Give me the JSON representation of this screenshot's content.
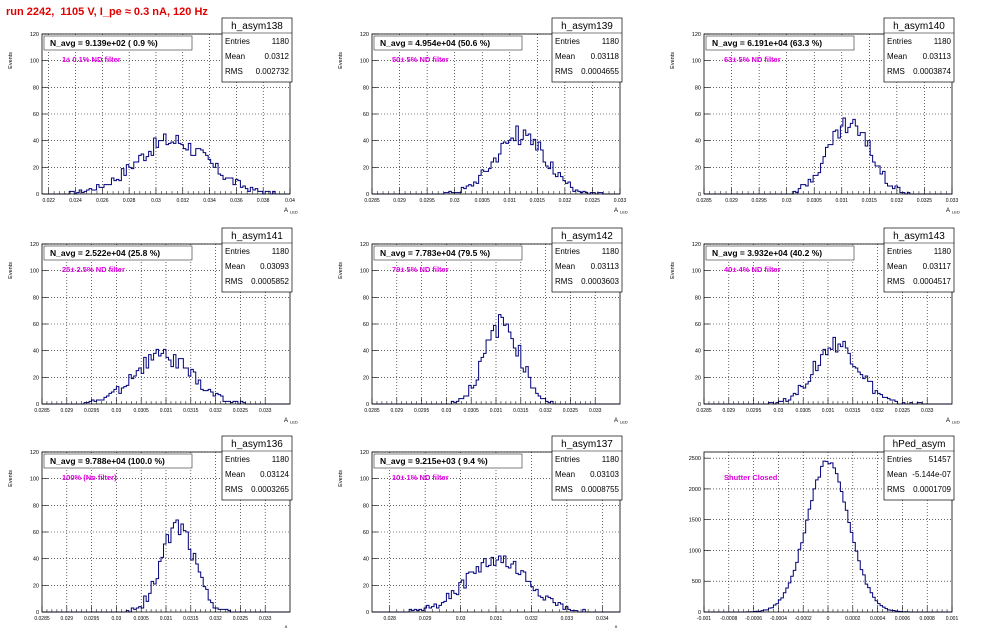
{
  "page_title": "run 2242,  1105 V, I_pe ≈ 0.3 nA, 120 Hz",
  "colors": {
    "title": "#e00000",
    "histogram": "#00007a",
    "annotation": "#e000e0",
    "grid": "#000000"
  },
  "chart_data": [
    {
      "type": "bar",
      "name": "h_asym138",
      "ylabel": "Events",
      "xlabel": "",
      "navg": "N_avg = 9.139e+02 ( 0.9 %)",
      "filter": "1± 0.1% ND filter",
      "stats": [
        [
          "Entries",
          "1180"
        ],
        [
          "Mean",
          "0.0312"
        ],
        [
          "RMS",
          "0.002732"
        ]
      ],
      "xlim": [
        0.0215,
        0.04
      ],
      "ylim": [
        0,
        120
      ],
      "xticks": [
        0.022,
        0.024,
        0.026,
        0.028,
        0.03,
        0.032,
        0.034,
        0.036,
        0.038,
        0.04
      ],
      "xtick_labels": [
        "0.022",
        "0.024",
        "0.026",
        "0.028",
        "0.03",
        "0.032",
        "0.034",
        "0.036",
        "0.038",
        "0.04"
      ],
      "yticks": [
        0,
        20,
        40,
        60,
        80,
        100,
        120
      ],
      "ytick_labels": [
        "0",
        "20",
        "40",
        "60",
        "80",
        "100",
        "120"
      ],
      "peak": {
        "center": 0.0312,
        "sigma": 0.0027,
        "height": 40
      },
      "bin_range": [
        0.0236,
        0.0388
      ],
      "nbins": 100
    },
    {
      "type": "bar",
      "name": "h_asym139",
      "ylabel": "Events",
      "xlabel": "",
      "navg": "N_avg = 4.954e+04 (50.6 %)",
      "filter": "50± 5% ND filter",
      "stats": [
        [
          "Entries",
          "1180"
        ],
        [
          "Mean",
          "0.03118"
        ],
        [
          "RMS",
          "0.0004655"
        ]
      ],
      "xlim": [
        0.0285,
        0.033
      ],
      "ylim": [
        0,
        120
      ],
      "xticks": [
        0.0285,
        0.029,
        0.0295,
        0.03,
        0.0305,
        0.031,
        0.0315,
        0.032,
        0.0325,
        0.033
      ],
      "xtick_labels": [
        "0.0285",
        "0.029",
        "0.0295",
        "0.03",
        "0.0305",
        "0.031",
        "0.0315",
        "0.032",
        "0.0325",
        "0.033"
      ],
      "yticks": [
        0,
        20,
        40,
        60,
        80,
        100,
        120
      ],
      "ytick_labels": [
        "0",
        "20",
        "40",
        "60",
        "80",
        "100",
        "120"
      ],
      "peak": {
        "center": 0.03118,
        "sigma": 0.00046,
        "height": 44
      },
      "bin_range": [
        0.0298,
        0.0327
      ],
      "nbins": 100
    },
    {
      "type": "bar",
      "name": "h_asym140",
      "ylabel": "Events",
      "xlabel": "",
      "navg": "N_avg = 6.191e+04 (63.3 %)",
      "filter": "63± 5% ND filter",
      "stats": [
        [
          "Entries",
          "1180"
        ],
        [
          "Mean",
          "0.03113"
        ],
        [
          "RMS",
          "0.0003874"
        ]
      ],
      "xlim": [
        0.0285,
        0.033
      ],
      "ylim": [
        0,
        120
      ],
      "xticks": [
        0.0285,
        0.029,
        0.0295,
        0.03,
        0.0305,
        0.031,
        0.0315,
        0.032,
        0.0325,
        0.033
      ],
      "xtick_labels": [
        "0.0285",
        "0.029",
        "0.0295",
        "0.03",
        "0.0305",
        "0.031",
        "0.0315",
        "0.032",
        "0.0325",
        "0.033"
      ],
      "yticks": [
        0,
        20,
        40,
        60,
        80,
        100,
        120
      ],
      "ytick_labels": [
        "0",
        "20",
        "40",
        "60",
        "80",
        "100",
        "120"
      ],
      "peak": {
        "center": 0.03113,
        "sigma": 0.00039,
        "height": 52
      },
      "bin_range": [
        0.0301,
        0.0323
      ],
      "nbins": 100
    },
    {
      "type": "bar",
      "name": "h_asym141",
      "ylabel": "Events",
      "xlabel": "",
      "navg": "N_avg = 2.522e+04 (25.8 %)",
      "filter": "25± 2.5% ND filter",
      "stats": [
        [
          "Entries",
          "1180"
        ],
        [
          "Mean",
          "0.03093"
        ],
        [
          "RMS",
          "0.0005852"
        ]
      ],
      "xlim": [
        0.0285,
        0.0335
      ],
      "ylim": [
        0,
        120
      ],
      "xticks": [
        0.0285,
        0.029,
        0.0295,
        0.03,
        0.0305,
        0.031,
        0.0315,
        0.032,
        0.0325,
        0.033
      ],
      "xtick_labels": [
        "0.0285",
        "0.029",
        "0.0295",
        "0.03",
        "0.0305",
        "0.031",
        "0.0315",
        "0.032",
        "0.0325",
        "0.033"
      ],
      "yticks": [
        0,
        20,
        40,
        60,
        80,
        100,
        120
      ],
      "ytick_labels": [
        "0",
        "20",
        "40",
        "60",
        "80",
        "100",
        "120"
      ],
      "peak": {
        "center": 0.03093,
        "sigma": 0.00058,
        "height": 36
      },
      "bin_range": [
        0.0293,
        0.0326
      ],
      "nbins": 100
    },
    {
      "type": "bar",
      "name": "h_asym142",
      "ylabel": "Events",
      "xlabel": "",
      "navg": "N_avg = 7.783e+04 (79.5 %)",
      "filter": "79± 5% ND filter",
      "stats": [
        [
          "Entries",
          "1180"
        ],
        [
          "Mean",
          "0.03113"
        ],
        [
          "RMS",
          "0.0003603"
        ]
      ],
      "xlim": [
        0.0285,
        0.0335
      ],
      "ylim": [
        0,
        120
      ],
      "xticks": [
        0.0285,
        0.029,
        0.0295,
        0.03,
        0.0305,
        0.031,
        0.0315,
        0.032,
        0.0325,
        0.033
      ],
      "xtick_labels": [
        "0.0285",
        "0.029",
        "0.0295",
        "0.03",
        "0.0305",
        "0.031",
        "0.0315",
        "0.032",
        "0.0325",
        "0.033"
      ],
      "yticks": [
        0,
        20,
        40,
        60,
        80,
        100,
        120
      ],
      "ytick_labels": [
        "0",
        "20",
        "40",
        "60",
        "80",
        "100",
        "120"
      ],
      "peak": {
        "center": 0.03113,
        "sigma": 0.00036,
        "height": 60
      },
      "bin_range": [
        0.0301,
        0.0322
      ],
      "nbins": 100
    },
    {
      "type": "bar",
      "name": "h_asym143",
      "ylabel": "Events",
      "xlabel": "",
      "navg": "N_avg = 3.932e+04 (40.2 %)",
      "filter": "40± 4% ND filter",
      "stats": [
        [
          "Entries",
          "1180"
        ],
        [
          "Mean",
          "0.03117"
        ],
        [
          "RMS",
          "0.0004517"
        ]
      ],
      "xlim": [
        0.0285,
        0.0335
      ],
      "ylim": [
        0,
        120
      ],
      "xticks": [
        0.0285,
        0.029,
        0.0295,
        0.03,
        0.0305,
        0.031,
        0.0315,
        0.032,
        0.0325,
        0.033
      ],
      "xtick_labels": [
        "0.0285",
        "0.029",
        "0.0295",
        "0.03",
        "0.0305",
        "0.031",
        "0.0315",
        "0.032",
        "0.0325",
        "0.033"
      ],
      "yticks": [
        0,
        20,
        40,
        60,
        80,
        100,
        120
      ],
      "ytick_labels": [
        "0",
        "20",
        "40",
        "60",
        "80",
        "100",
        "120"
      ],
      "peak": {
        "center": 0.03117,
        "sigma": 0.00045,
        "height": 44
      },
      "bin_range": [
        0.0298,
        0.0331
      ],
      "nbins": 100
    },
    {
      "type": "bar",
      "name": "h_asym136",
      "ylabel": "Events",
      "xlabel": "",
      "navg": "N_avg = 9.788e+04 (100.0 %)",
      "filter": "100% (No filter)",
      "stats": [
        [
          "Entries",
          "1180"
        ],
        [
          "Mean",
          "0.03124"
        ],
        [
          "RMS",
          "0.0003265"
        ]
      ],
      "xlim": [
        0.0285,
        0.0335
      ],
      "ylim": [
        0,
        120
      ],
      "xticks": [
        0.0285,
        0.029,
        0.0295,
        0.03,
        0.0305,
        0.031,
        0.0315,
        0.032,
        0.0325,
        0.033
      ],
      "xtick_labels": [
        "0.0285",
        "0.029",
        "0.0295",
        "0.03",
        "0.0305",
        "0.031",
        "0.0315",
        "0.032",
        "0.0325",
        "0.033"
      ],
      "yticks": [
        0,
        20,
        40,
        60,
        80,
        100,
        120
      ],
      "ytick_labels": [
        "0",
        "20",
        "40",
        "60",
        "80",
        "100",
        "120"
      ],
      "peak": {
        "center": 0.03124,
        "sigma": 0.00033,
        "height": 64
      },
      "bin_range": [
        0.0301,
        0.0323
      ],
      "nbins": 100
    },
    {
      "type": "bar",
      "name": "h_asym137",
      "ylabel": "Events",
      "xlabel": "",
      "navg": "N_avg = 9.215e+03 ( 9.4 %)",
      "filter": "10± 1% ND filter",
      "stats": [
        [
          "Entries",
          "1180"
        ],
        [
          "Mean",
          "0.03103"
        ],
        [
          "RMS",
          "0.0008755"
        ]
      ],
      "xlim": [
        0.0275,
        0.0345
      ],
      "ylim": [
        0,
        120
      ],
      "xticks": [
        0.028,
        0.029,
        0.03,
        0.031,
        0.032,
        0.033,
        0.034
      ],
      "xtick_labels": [
        "0.028",
        "0.029",
        "0.03",
        "0.031",
        "0.032",
        "0.033",
        "0.034"
      ],
      "yticks": [
        0,
        20,
        40,
        60,
        80,
        100,
        120
      ],
      "ytick_labels": [
        "0",
        "20",
        "40",
        "60",
        "80",
        "100",
        "120"
      ],
      "peak": {
        "center": 0.03103,
        "sigma": 0.00087,
        "height": 38
      },
      "bin_range": [
        0.0285,
        0.0335
      ],
      "nbins": 100
    },
    {
      "type": "bar",
      "name": "hPed_asym",
      "ylabel": "",
      "xlabel": "",
      "navg": "",
      "filter": "Shutter Closed",
      "stats": [
        [
          "Entries",
          "51457"
        ],
        [
          "Mean",
          "-5.144e-07"
        ],
        [
          "RMS",
          "0.0001709"
        ]
      ],
      "xlim": [
        -0.001,
        0.001
      ],
      "ylim": [
        0,
        2600
      ],
      "xticks": [
        -0.001,
        -0.0008,
        -0.0006,
        -0.0004,
        -0.0002,
        0,
        0.0002,
        0.0004,
        0.0006,
        0.0008,
        0.001
      ],
      "xtick_labels": [
        "-0.001",
        "-0.0008",
        "-0.0006",
        "-0.0004",
        "-0.0002",
        "0",
        "0.0002",
        "0.0004",
        "0.0006",
        "0.0008",
        "0.001"
      ],
      "yticks": [
        0,
        500,
        1000,
        1500,
        2000,
        2500
      ],
      "ytick_labels": [
        "0",
        "500",
        "1000",
        "1500",
        "2000",
        "2500"
      ],
      "peak": {
        "center": 0,
        "sigma": 0.000171,
        "height": 2440
      },
      "bin_range": [
        -0.0007,
        0.0007
      ],
      "nbins": 100
    }
  ]
}
